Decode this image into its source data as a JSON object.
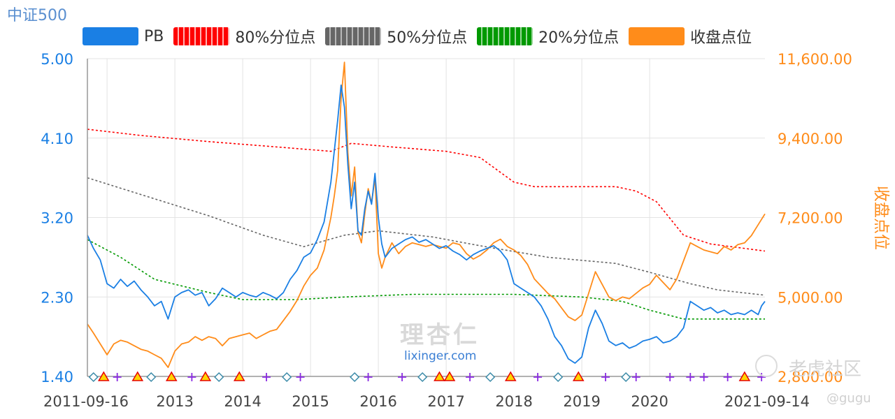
{
  "chart_data": {
    "type": "line",
    "title": "中证500",
    "legend": [
      {
        "key": "pb",
        "label": "PB",
        "color": "#1a7fe4"
      },
      {
        "key": "p80",
        "label": "80%分位点",
        "color": "#ff0000"
      },
      {
        "key": "p50",
        "label": "50%分位点",
        "color": "#666666"
      },
      {
        "key": "p20",
        "label": "20%分位点",
        "color": "#009900"
      },
      {
        "key": "close",
        "label": "收盘点位",
        "color": "#ff8c1a"
      }
    ],
    "x_ticks": [
      "2011-09-16",
      "2013",
      "2014",
      "2015",
      "2016",
      "2017",
      "2018",
      "2019",
      "2020",
      "2021-09-14"
    ],
    "x_range": [
      2011.71,
      2021.7
    ],
    "y_left": {
      "label": "",
      "range": [
        1.4,
        5.0
      ],
      "ticks": [
        "5.00",
        "4.10",
        "3.20",
        "2.30",
        "1.40"
      ],
      "color": "#1a7fe4"
    },
    "y_right": {
      "label": "收盘点位",
      "range": [
        2800,
        11600
      ],
      "ticks": [
        "11,600.00",
        "9,400.00",
        "7,200.00",
        "5,000.00",
        "2,800.00"
      ],
      "color": "#ff8c1a"
    },
    "series": {
      "pb": [
        [
          2011.71,
          3.0
        ],
        [
          2011.8,
          2.85
        ],
        [
          2011.9,
          2.72
        ],
        [
          2012.0,
          2.45
        ],
        [
          2012.1,
          2.4
        ],
        [
          2012.2,
          2.5
        ],
        [
          2012.3,
          2.42
        ],
        [
          2012.4,
          2.48
        ],
        [
          2012.5,
          2.38
        ],
        [
          2012.6,
          2.3
        ],
        [
          2012.7,
          2.2
        ],
        [
          2012.8,
          2.25
        ],
        [
          2012.9,
          2.05
        ],
        [
          2013.0,
          2.3
        ],
        [
          2013.1,
          2.35
        ],
        [
          2013.2,
          2.38
        ],
        [
          2013.3,
          2.32
        ],
        [
          2013.4,
          2.35
        ],
        [
          2013.5,
          2.2
        ],
        [
          2013.6,
          2.28
        ],
        [
          2013.7,
          2.4
        ],
        [
          2013.8,
          2.35
        ],
        [
          2013.9,
          2.3
        ],
        [
          2014.0,
          2.35
        ],
        [
          2014.1,
          2.32
        ],
        [
          2014.2,
          2.3
        ],
        [
          2014.3,
          2.35
        ],
        [
          2014.4,
          2.32
        ],
        [
          2014.5,
          2.28
        ],
        [
          2014.6,
          2.35
        ],
        [
          2014.7,
          2.5
        ],
        [
          2014.8,
          2.6
        ],
        [
          2014.9,
          2.75
        ],
        [
          2015.0,
          2.8
        ],
        [
          2015.1,
          2.95
        ],
        [
          2015.2,
          3.15
        ],
        [
          2015.3,
          3.6
        ],
        [
          2015.4,
          4.3
        ],
        [
          2015.45,
          4.7
        ],
        [
          2015.5,
          4.45
        ],
        [
          2015.55,
          3.8
        ],
        [
          2015.6,
          3.3
        ],
        [
          2015.65,
          3.6
        ],
        [
          2015.7,
          3.05
        ],
        [
          2015.75,
          3.0
        ],
        [
          2015.8,
          3.3
        ],
        [
          2015.85,
          3.5
        ],
        [
          2015.9,
          3.35
        ],
        [
          2015.95,
          3.7
        ],
        [
          2016.0,
          3.2
        ],
        [
          2016.05,
          2.9
        ],
        [
          2016.1,
          2.75
        ],
        [
          2016.2,
          2.85
        ],
        [
          2016.3,
          2.9
        ],
        [
          2016.4,
          2.95
        ],
        [
          2016.5,
          2.98
        ],
        [
          2016.6,
          2.92
        ],
        [
          2016.7,
          2.95
        ],
        [
          2016.8,
          2.9
        ],
        [
          2016.9,
          2.85
        ],
        [
          2017.0,
          2.88
        ],
        [
          2017.1,
          2.82
        ],
        [
          2017.2,
          2.78
        ],
        [
          2017.3,
          2.72
        ],
        [
          2017.4,
          2.78
        ],
        [
          2017.5,
          2.82
        ],
        [
          2017.6,
          2.85
        ],
        [
          2017.7,
          2.88
        ],
        [
          2017.8,
          2.82
        ],
        [
          2017.9,
          2.72
        ],
        [
          2018.0,
          2.45
        ],
        [
          2018.1,
          2.4
        ],
        [
          2018.2,
          2.35
        ],
        [
          2018.3,
          2.3
        ],
        [
          2018.4,
          2.2
        ],
        [
          2018.5,
          2.05
        ],
        [
          2018.6,
          1.85
        ],
        [
          2018.7,
          1.75
        ],
        [
          2018.8,
          1.6
        ],
        [
          2018.9,
          1.55
        ],
        [
          2019.0,
          1.62
        ],
        [
          2019.1,
          1.95
        ],
        [
          2019.2,
          2.15
        ],
        [
          2019.3,
          2.0
        ],
        [
          2019.4,
          1.8
        ],
        [
          2019.5,
          1.75
        ],
        [
          2019.6,
          1.78
        ],
        [
          2019.7,
          1.72
        ],
        [
          2019.8,
          1.75
        ],
        [
          2019.9,
          1.8
        ],
        [
          2020.0,
          1.82
        ],
        [
          2020.1,
          1.85
        ],
        [
          2020.2,
          1.78
        ],
        [
          2020.3,
          1.8
        ],
        [
          2020.4,
          1.85
        ],
        [
          2020.5,
          1.95
        ],
        [
          2020.6,
          2.25
        ],
        [
          2020.7,
          2.2
        ],
        [
          2020.8,
          2.15
        ],
        [
          2020.9,
          2.18
        ],
        [
          2021.0,
          2.12
        ],
        [
          2021.1,
          2.15
        ],
        [
          2021.2,
          2.1
        ],
        [
          2021.3,
          2.12
        ],
        [
          2021.4,
          2.1
        ],
        [
          2021.5,
          2.15
        ],
        [
          2021.6,
          2.1
        ],
        [
          2021.65,
          2.2
        ],
        [
          2021.7,
          2.25
        ]
      ],
      "close": [
        [
          2011.71,
          4250
        ],
        [
          2011.8,
          4000
        ],
        [
          2011.9,
          3700
        ],
        [
          2012.0,
          3400
        ],
        [
          2012.1,
          3700
        ],
        [
          2012.2,
          3800
        ],
        [
          2012.3,
          3750
        ],
        [
          2012.4,
          3650
        ],
        [
          2012.5,
          3550
        ],
        [
          2012.6,
          3500
        ],
        [
          2012.7,
          3400
        ],
        [
          2012.8,
          3300
        ],
        [
          2012.9,
          3050
        ],
        [
          2013.0,
          3500
        ],
        [
          2013.1,
          3700
        ],
        [
          2013.2,
          3750
        ],
        [
          2013.3,
          3900
        ],
        [
          2013.4,
          3800
        ],
        [
          2013.5,
          3900
        ],
        [
          2013.6,
          3850
        ],
        [
          2013.7,
          3650
        ],
        [
          2013.8,
          3850
        ],
        [
          2013.9,
          3900
        ],
        [
          2014.0,
          3950
        ],
        [
          2014.1,
          4000
        ],
        [
          2014.2,
          3850
        ],
        [
          2014.3,
          3950
        ],
        [
          2014.4,
          4050
        ],
        [
          2014.5,
          4100
        ],
        [
          2014.6,
          4350
        ],
        [
          2014.7,
          4600
        ],
        [
          2014.8,
          4900
        ],
        [
          2014.9,
          5300
        ],
        [
          2015.0,
          5600
        ],
        [
          2015.1,
          5800
        ],
        [
          2015.2,
          6300
        ],
        [
          2015.3,
          7200
        ],
        [
          2015.35,
          7800
        ],
        [
          2015.4,
          8500
        ],
        [
          2015.45,
          10500
        ],
        [
          2015.5,
          11500
        ],
        [
          2015.55,
          9000
        ],
        [
          2015.6,
          7800
        ],
        [
          2015.65,
          8600
        ],
        [
          2015.7,
          6800
        ],
        [
          2015.75,
          6500
        ],
        [
          2015.8,
          7300
        ],
        [
          2015.85,
          8000
        ],
        [
          2015.9,
          7600
        ],
        [
          2015.95,
          8300
        ],
        [
          2016.0,
          6200
        ],
        [
          2016.05,
          5800
        ],
        [
          2016.1,
          6100
        ],
        [
          2016.2,
          6500
        ],
        [
          2016.3,
          6200
        ],
        [
          2016.4,
          6400
        ],
        [
          2016.5,
          6500
        ],
        [
          2016.6,
          6450
        ],
        [
          2016.7,
          6400
        ],
        [
          2016.8,
          6450
        ],
        [
          2016.9,
          6400
        ],
        [
          2017.0,
          6350
        ],
        [
          2017.1,
          6500
        ],
        [
          2017.2,
          6450
        ],
        [
          2017.3,
          6200
        ],
        [
          2017.4,
          6050
        ],
        [
          2017.5,
          6150
        ],
        [
          2017.6,
          6300
        ],
        [
          2017.7,
          6500
        ],
        [
          2017.8,
          6600
        ],
        [
          2017.9,
          6400
        ],
        [
          2018.0,
          6300
        ],
        [
          2018.1,
          6150
        ],
        [
          2018.2,
          5900
        ],
        [
          2018.3,
          5500
        ],
        [
          2018.4,
          5300
        ],
        [
          2018.5,
          5100
        ],
        [
          2018.6,
          4950
        ],
        [
          2018.7,
          4700
        ],
        [
          2018.8,
          4450
        ],
        [
          2018.9,
          4350
        ],
        [
          2019.0,
          4500
        ],
        [
          2019.1,
          5100
        ],
        [
          2019.2,
          5700
        ],
        [
          2019.3,
          5350
        ],
        [
          2019.4,
          5000
        ],
        [
          2019.5,
          4900
        ],
        [
          2019.6,
          5000
        ],
        [
          2019.7,
          4950
        ],
        [
          2019.8,
          5100
        ],
        [
          2019.9,
          5250
        ],
        [
          2020.0,
          5350
        ],
        [
          2020.1,
          5600
        ],
        [
          2020.2,
          5400
        ],
        [
          2020.3,
          5200
        ],
        [
          2020.4,
          5500
        ],
        [
          2020.5,
          6000
        ],
        [
          2020.6,
          6500
        ],
        [
          2020.7,
          6400
        ],
        [
          2020.8,
          6300
        ],
        [
          2020.9,
          6250
        ],
        [
          2021.0,
          6200
        ],
        [
          2021.1,
          6400
        ],
        [
          2021.2,
          6300
        ],
        [
          2021.3,
          6450
        ],
        [
          2021.4,
          6500
        ],
        [
          2021.5,
          6700
        ],
        [
          2021.6,
          7000
        ],
        [
          2021.7,
          7300
        ]
      ],
      "p80": [
        [
          2011.71,
          4.2
        ],
        [
          2012.5,
          4.13
        ],
        [
          2013.5,
          4.06
        ],
        [
          2014.5,
          4.0
        ],
        [
          2015.3,
          3.95
        ],
        [
          2015.6,
          4.04
        ],
        [
          2016.2,
          4.0
        ],
        [
          2017.0,
          3.95
        ],
        [
          2017.5,
          3.88
        ],
        [
          2018.0,
          3.6
        ],
        [
          2018.3,
          3.55
        ],
        [
          2019.5,
          3.55
        ],
        [
          2019.8,
          3.5
        ],
        [
          2020.1,
          3.38
        ],
        [
          2020.5,
          3.0
        ],
        [
          2020.9,
          2.9
        ],
        [
          2021.7,
          2.82
        ]
      ],
      "p50": [
        [
          2011.71,
          3.65
        ],
        [
          2012.5,
          3.46
        ],
        [
          2013.5,
          3.22
        ],
        [
          2014.3,
          3.0
        ],
        [
          2014.9,
          2.87
        ],
        [
          2015.5,
          3.0
        ],
        [
          2016.0,
          3.05
        ],
        [
          2016.8,
          2.98
        ],
        [
          2017.5,
          2.88
        ],
        [
          2018.5,
          2.75
        ],
        [
          2019.5,
          2.68
        ],
        [
          2020.0,
          2.58
        ],
        [
          2020.6,
          2.45
        ],
        [
          2021.0,
          2.38
        ],
        [
          2021.7,
          2.32
        ]
      ],
      "p20": [
        [
          2011.71,
          2.95
        ],
        [
          2012.2,
          2.75
        ],
        [
          2012.7,
          2.5
        ],
        [
          2013.5,
          2.35
        ],
        [
          2014.0,
          2.27
        ],
        [
          2014.8,
          2.27
        ],
        [
          2015.5,
          2.3
        ],
        [
          2016.5,
          2.33
        ],
        [
          2018.0,
          2.33
        ],
        [
          2019.0,
          2.3
        ],
        [
          2019.6,
          2.25
        ],
        [
          2020.0,
          2.15
        ],
        [
          2020.5,
          2.05
        ],
        [
          2020.8,
          2.05
        ],
        [
          2021.7,
          2.05
        ]
      ]
    },
    "markers": [
      {
        "type": "diamond",
        "x": 2011.8
      },
      {
        "type": "triangle",
        "x": 2011.95
      },
      {
        "type": "plus",
        "x": 2012.15
      },
      {
        "type": "triangle",
        "x": 2012.45
      },
      {
        "type": "diamond",
        "x": 2012.65
      },
      {
        "type": "triangle",
        "x": 2012.95
      },
      {
        "type": "plus",
        "x": 2013.25
      },
      {
        "type": "triangle",
        "x": 2013.45
      },
      {
        "type": "diamond",
        "x": 2013.65
      },
      {
        "type": "triangle",
        "x": 2013.95
      },
      {
        "type": "plus",
        "x": 2014.35
      },
      {
        "type": "diamond",
        "x": 2014.65
      },
      {
        "type": "plus",
        "x": 2014.85
      },
      {
        "type": "diamond",
        "x": 2015.65
      },
      {
        "type": "plus",
        "x": 2015.85
      },
      {
        "type": "plus",
        "x": 2016.35
      },
      {
        "type": "diamond",
        "x": 2016.65
      },
      {
        "type": "triangle",
        "x": 2016.9
      },
      {
        "type": "triangle",
        "x": 2017.05
      },
      {
        "type": "plus",
        "x": 2017.35
      },
      {
        "type": "diamond",
        "x": 2017.65
      },
      {
        "type": "triangle",
        "x": 2017.95
      },
      {
        "type": "plus",
        "x": 2018.35
      },
      {
        "type": "diamond",
        "x": 2018.65
      },
      {
        "type": "triangle",
        "x": 2018.95
      },
      {
        "type": "plus",
        "x": 2019.35
      },
      {
        "type": "diamond",
        "x": 2019.65
      },
      {
        "type": "plus",
        "x": 2019.8
      },
      {
        "type": "plus",
        "x": 2020.3
      },
      {
        "type": "plus",
        "x": 2020.6
      },
      {
        "type": "plus",
        "x": 2020.8
      },
      {
        "type": "plus",
        "x": 2021.15
      },
      {
        "type": "triangle",
        "x": 2021.4
      },
      {
        "type": "plus",
        "x": 2021.65
      }
    ]
  },
  "watermark": {
    "brand": "理杏仁",
    "url": "lixinger.com",
    "forum": "老虎社区",
    "user": "@gugu"
  }
}
